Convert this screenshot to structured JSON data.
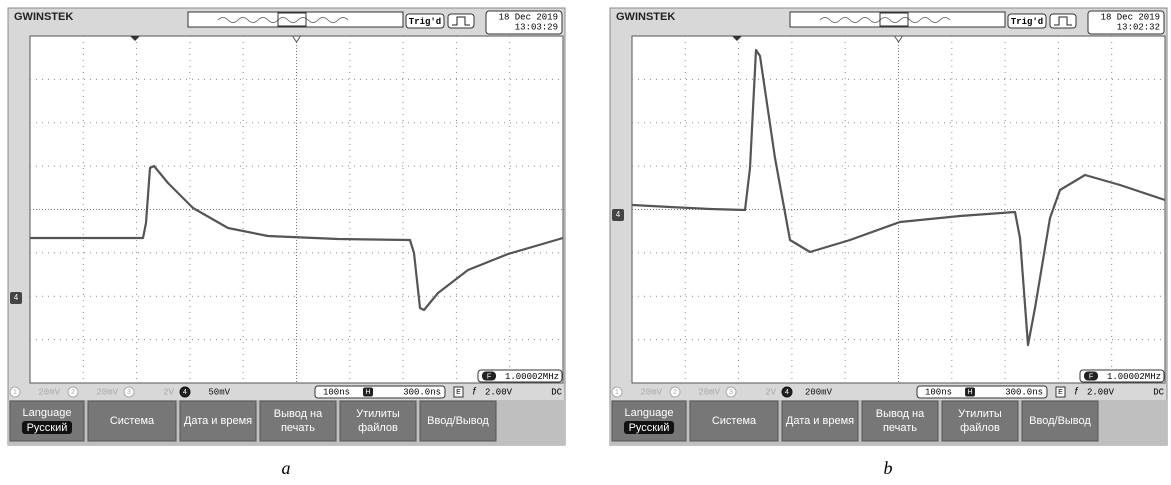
{
  "panels": [
    {
      "caption": "a",
      "logo": "GWINSTEK",
      "trigger": "Trig'd",
      "date": "18 Dec 2019",
      "time": "13:03:29",
      "channels": [
        {
          "number": "1",
          "scale": "20mV"
        },
        {
          "number": "2",
          "scale": "20mV"
        },
        {
          "number": "3",
          "scale": "2V"
        },
        {
          "number": "4",
          "scale": "50mV"
        }
      ],
      "timebase": "100ns",
      "h_label": "H",
      "position": "300.0ns",
      "trigger_source": "E",
      "trigger_slope": "f",
      "trigger_level": "2.00V",
      "coupling": "DC",
      "frequency_label": "F",
      "frequency": "1.00002MHz",
      "menu": [
        {
          "lines": [
            "Language"
          ],
          "value": "Русский"
        },
        {
          "lines": [
            "Система"
          ]
        },
        {
          "lines": [
            "Дата и время"
          ]
        },
        {
          "lines": [
            "Вывод на",
            "печать"
          ]
        },
        {
          "lines": [
            "Утилиты",
            "файлов"
          ]
        },
        {
          "lines": [
            "Ввод/Вывод"
          ]
        }
      ]
    },
    {
      "caption": "b",
      "logo": "GWINSTEK",
      "trigger": "Trig'd",
      "date": "18 Dec 2019",
      "time": "13:02:32",
      "channels": [
        {
          "number": "1",
          "scale": "20mV"
        },
        {
          "number": "2",
          "scale": "20mV"
        },
        {
          "number": "3",
          "scale": "2V"
        },
        {
          "number": "4",
          "scale": "200mV"
        }
      ],
      "timebase": "100ns",
      "h_label": "H",
      "position": "300.0ns",
      "trigger_source": "E",
      "trigger_slope": "f",
      "trigger_level": "2.00V",
      "coupling": "DC",
      "frequency_label": "F",
      "frequency": "1.00002MHz",
      "menu": [
        {
          "lines": [
            "Language"
          ],
          "value": "Русский"
        },
        {
          "lines": [
            "Система"
          ]
        },
        {
          "lines": [
            "Дата и время"
          ]
        },
        {
          "lines": [
            "Вывод на",
            "печать"
          ]
        },
        {
          "lines": [
            "Утилиты",
            "файлов"
          ]
        },
        {
          "lines": [
            "Ввод/Вывод"
          ]
        }
      ]
    }
  ]
}
